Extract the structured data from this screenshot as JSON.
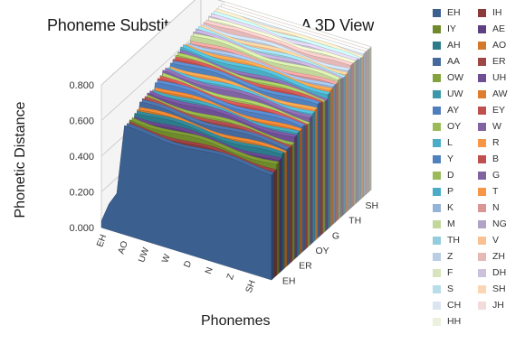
{
  "chart_data": {
    "type": "area",
    "title": "Phoneme Substitution Cost Matrix  - A 3D View",
    "xlabel": "Phonemes",
    "ylabel": "Phonetic Distance",
    "ylim": [
      0,
      0.8
    ],
    "y_ticks": [
      "0.000",
      "0.200",
      "0.400",
      "0.600",
      "0.800"
    ],
    "x_tick_labels": [
      "EH",
      "AO",
      "UW",
      "W",
      "D",
      "N",
      "Z",
      "SH"
    ],
    "depth_tick_labels": [
      "EH",
      "ER",
      "OY",
      "G",
      "TH",
      "SH"
    ],
    "grid": true,
    "legend_position": "right",
    "series": [
      {
        "name": "EH",
        "color": "#3b5f8f",
        "value": 0.6
      },
      {
        "name": "IH",
        "color": "#8b3a3a",
        "value": 0.6
      },
      {
        "name": "IY",
        "color": "#6f8a2c",
        "value": 0.62
      },
      {
        "name": "AE",
        "color": "#5e3f80",
        "value": 0.62
      },
      {
        "name": "AH",
        "color": "#2c7a8a",
        "value": 0.64
      },
      {
        "name": "AO",
        "color": "#d4792a",
        "value": 0.64
      },
      {
        "name": "AA",
        "color": "#45699c",
        "value": 0.66
      },
      {
        "name": "ER",
        "color": "#9e4747",
        "value": 0.66
      },
      {
        "name": "OW",
        "color": "#84a33e",
        "value": 0.66
      },
      {
        "name": "UH",
        "color": "#6e4f94",
        "value": 0.68
      },
      {
        "name": "UW",
        "color": "#3c97ab",
        "value": 0.68
      },
      {
        "name": "AW",
        "color": "#e07c2e",
        "value": 0.68
      },
      {
        "name": "AY",
        "color": "#4f7dbd",
        "value": 0.7
      },
      {
        "name": "EY",
        "color": "#c0504d",
        "value": 0.7
      },
      {
        "name": "OY",
        "color": "#9bbb59",
        "value": 0.7
      },
      {
        "name": "W",
        "color": "#8064a2",
        "value": 0.72
      },
      {
        "name": "L",
        "color": "#4bacc6",
        "value": 0.72
      },
      {
        "name": "R",
        "color": "#f79646",
        "value": 0.72
      },
      {
        "name": "Y",
        "color": "#4f81bd",
        "value": 0.74
      },
      {
        "name": "B",
        "color": "#c0504d",
        "value": 0.74
      },
      {
        "name": "D",
        "color": "#9bbb59",
        "value": 0.74
      },
      {
        "name": "G",
        "color": "#8064a2",
        "value": 0.74
      },
      {
        "name": "P",
        "color": "#4bacc6",
        "value": 0.76
      },
      {
        "name": "T",
        "color": "#f79646",
        "value": 0.76
      },
      {
        "name": "K",
        "color": "#95b3d7",
        "value": 0.76
      },
      {
        "name": "N",
        "color": "#d99694",
        "value": 0.76
      },
      {
        "name": "M",
        "color": "#c3d69b",
        "value": 0.78
      },
      {
        "name": "NG",
        "color": "#b3a2c7",
        "value": 0.78
      },
      {
        "name": "TH",
        "color": "#93cddd",
        "value": 0.78
      },
      {
        "name": "V",
        "color": "#fac08f",
        "value": 0.78
      },
      {
        "name": "Z",
        "color": "#b9cde5",
        "value": 0.78
      },
      {
        "name": "ZH",
        "color": "#e6b9b8",
        "value": 0.8
      },
      {
        "name": "F",
        "color": "#d7e4bd",
        "value": 0.8
      },
      {
        "name": "DH",
        "color": "#ccc1da",
        "value": 0.8
      },
      {
        "name": "S",
        "color": "#b7dee8",
        "value": 0.8
      },
      {
        "name": "SH",
        "color": "#fcd5b5",
        "value": 0.8
      },
      {
        "name": "CH",
        "color": "#dbe5f1",
        "value": 0.82
      },
      {
        "name": "JH",
        "color": "#f2dcdb",
        "value": 0.82
      },
      {
        "name": "HH",
        "color": "#ebf1de",
        "value": 0.82
      }
    ]
  }
}
